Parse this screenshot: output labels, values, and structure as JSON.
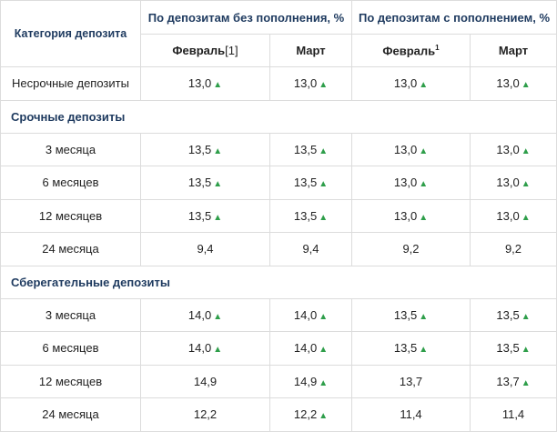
{
  "headers": {
    "category": "Категория депозита",
    "group_no_topup": "По депозитам без пополнения, %",
    "group_topup": "По депозитам с пополнением, %",
    "feb": "Февраль",
    "feb_ref": "[1]",
    "mar": "Март",
    "feb2": "Февраль",
    "feb2_sup": "1",
    "mar2": "Март"
  },
  "rows": [
    {
      "type": "row",
      "label": "Несрочные депозиты",
      "values": [
        "13,0",
        "13,0",
        "13,0",
        "13,0"
      ],
      "up": [
        true,
        true,
        true,
        true
      ]
    },
    {
      "type": "section",
      "label": "Срочные депозиты"
    },
    {
      "type": "row",
      "label": "3 месяца",
      "values": [
        "13,5",
        "13,5",
        "13,0",
        "13,0"
      ],
      "up": [
        true,
        true,
        true,
        true
      ]
    },
    {
      "type": "row",
      "label": "6 месяцев",
      "values": [
        "13,5",
        "13,5",
        "13,0",
        "13,0"
      ],
      "up": [
        true,
        true,
        true,
        true
      ]
    },
    {
      "type": "row",
      "label": "12 месяцев",
      "values": [
        "13,5",
        "13,5",
        "13,0",
        "13,0"
      ],
      "up": [
        true,
        true,
        true,
        true
      ]
    },
    {
      "type": "row",
      "label": "24 месяца",
      "values": [
        "9,4",
        "9,4",
        "9,2",
        "9,2"
      ],
      "up": [
        false,
        false,
        false,
        false
      ]
    },
    {
      "type": "section",
      "label": "Сберегательные депозиты"
    },
    {
      "type": "row",
      "label": "3 месяца",
      "values": [
        "14,0",
        "14,0",
        "13,5",
        "13,5"
      ],
      "up": [
        true,
        true,
        true,
        true
      ]
    },
    {
      "type": "row",
      "label": "6 месяцев",
      "values": [
        "14,0",
        "14,0",
        "13,5",
        "13,5"
      ],
      "up": [
        true,
        true,
        true,
        true
      ]
    },
    {
      "type": "row",
      "label": "12 месяцев",
      "values": [
        "14,9",
        "14,9",
        "13,7",
        "13,7"
      ],
      "up": [
        false,
        true,
        false,
        true
      ]
    },
    {
      "type": "row",
      "label": "24 месяца",
      "values": [
        "12,2",
        "12,2",
        "11,4",
        "11,4"
      ],
      "up": [
        false,
        true,
        false,
        false
      ]
    }
  ],
  "icons": {
    "increase": "triangle-up-icon",
    "increase_color": "#2e9e4a"
  }
}
